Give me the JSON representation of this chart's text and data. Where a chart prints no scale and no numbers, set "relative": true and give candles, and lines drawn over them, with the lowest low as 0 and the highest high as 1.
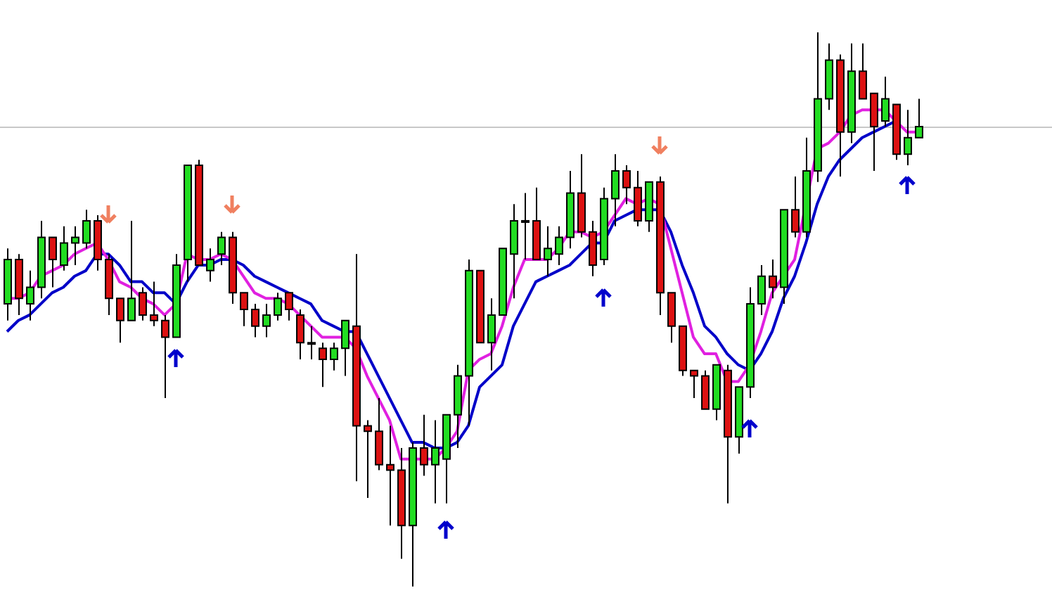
{
  "chart_data": {
    "type": "candlestick",
    "relative": true,
    "legend": false,
    "tick_labels": false,
    "categories": [
      null,
      null,
      null,
      null,
      null,
      null,
      null,
      null,
      null,
      null,
      null,
      null,
      null,
      null,
      null,
      null,
      null,
      null,
      null,
      null,
      null,
      null,
      null,
      null,
      null,
      null,
      null,
      null,
      null,
      null,
      null,
      null,
      null,
      null,
      null,
      null,
      null,
      null,
      null,
      null,
      null,
      null,
      null,
      null,
      null,
      null,
      null,
      null,
      null,
      null,
      null,
      null,
      null,
      null,
      null,
      null,
      null,
      null,
      null,
      null,
      null,
      null,
      null,
      null,
      null,
      null,
      null,
      null,
      null,
      null,
      null,
      null,
      null,
      null,
      null,
      null,
      null,
      null,
      null,
      null,
      null,
      null
    ],
    "ohlc": [
      [
        0.51,
        0.61,
        0.48,
        0.59
      ],
      [
        0.59,
        0.6,
        0.49,
        0.52
      ],
      [
        0.51,
        0.57,
        0.48,
        0.54
      ],
      [
        0.54,
        0.66,
        0.52,
        0.63
      ],
      [
        0.63,
        0.63,
        0.54,
        0.59
      ],
      [
        0.58,
        0.65,
        0.57,
        0.62
      ],
      [
        0.62,
        0.65,
        0.58,
        0.63
      ],
      [
        0.62,
        0.68,
        0.61,
        0.66
      ],
      [
        0.66,
        0.67,
        0.57,
        0.59
      ],
      [
        0.59,
        0.6,
        0.49,
        0.52
      ],
      [
        0.52,
        0.52,
        0.44,
        0.48
      ],
      [
        0.48,
        0.66,
        0.48,
        0.52
      ],
      [
        0.53,
        0.54,
        0.48,
        0.49
      ],
      [
        0.49,
        0.55,
        0.47,
        0.48
      ],
      [
        0.48,
        0.49,
        0.34,
        0.45
      ],
      [
        0.45,
        0.6,
        0.45,
        0.58
      ],
      [
        0.59,
        0.76,
        0.55,
        0.76
      ],
      [
        0.76,
        0.77,
        0.58,
        0.58
      ],
      [
        0.57,
        0.61,
        0.55,
        0.59
      ],
      [
        0.6,
        0.64,
        0.58,
        0.63
      ],
      [
        0.63,
        0.64,
        0.51,
        0.53
      ],
      [
        0.53,
        0.53,
        0.47,
        0.5
      ],
      [
        0.5,
        0.51,
        0.45,
        0.47
      ],
      [
        0.47,
        0.51,
        0.45,
        0.49
      ],
      [
        0.49,
        0.53,
        0.48,
        0.52
      ],
      [
        0.53,
        0.53,
        0.48,
        0.5
      ],
      [
        0.49,
        0.5,
        0.41,
        0.44
      ],
      [
        0.44,
        0.47,
        0.41,
        0.44
      ],
      [
        0.43,
        0.44,
        0.36,
        0.41
      ],
      [
        0.41,
        0.44,
        0.39,
        0.43
      ],
      [
        0.43,
        0.48,
        0.38,
        0.48
      ],
      [
        0.47,
        0.6,
        0.19,
        0.29
      ],
      [
        0.29,
        0.3,
        0.16,
        0.28
      ],
      [
        0.28,
        0.34,
        0.21,
        0.22
      ],
      [
        0.22,
        0.29,
        0.11,
        0.21
      ],
      [
        0.21,
        0.25,
        0.05,
        0.11
      ],
      [
        0.11,
        0.26,
        0,
        0.25
      ],
      [
        0.25,
        0.31,
        0.2,
        0.22
      ],
      [
        0.22,
        0.3,
        0.15,
        0.25
      ],
      [
        0.23,
        0.31,
        0.15,
        0.31
      ],
      [
        0.31,
        0.4,
        0.25,
        0.38
      ],
      [
        0.38,
        0.59,
        0.29,
        0.57
      ],
      [
        0.57,
        0.57,
        0.44,
        0.44
      ],
      [
        0.44,
        0.52,
        0.39,
        0.49
      ],
      [
        0.49,
        0.61,
        0.49,
        0.61
      ],
      [
        0.6,
        0.69,
        0.52,
        0.66
      ],
      [
        0.66,
        0.71,
        0.59,
        0.66
      ],
      [
        0.66,
        0.72,
        0.59,
        0.59
      ],
      [
        0.59,
        0.65,
        0.56,
        0.61
      ],
      [
        0.6,
        0.65,
        0.58,
        0.63
      ],
      [
        0.63,
        0.75,
        0.61,
        0.71
      ],
      [
        0.71,
        0.78,
        0.63,
        0.64
      ],
      [
        0.64,
        0.66,
        0.56,
        0.58
      ],
      [
        0.59,
        0.72,
        0.58,
        0.7
      ],
      [
        0.7,
        0.78,
        0.65,
        0.75
      ],
      [
        0.75,
        0.76,
        0.69,
        0.72
      ],
      [
        0.72,
        0.75,
        0.65,
        0.66
      ],
      [
        0.66,
        0.73,
        0.64,
        0.73
      ],
      [
        0.73,
        0.74,
        0.49,
        0.53
      ],
      [
        0.53,
        0.53,
        0.44,
        0.47
      ],
      [
        0.47,
        0.47,
        0.38,
        0.39
      ],
      [
        0.39,
        0.39,
        0.34,
        0.38
      ],
      [
        0.38,
        0.39,
        0.32,
        0.32
      ],
      [
        0.32,
        0.4,
        0.3,
        0.4
      ],
      [
        0.39,
        0.4,
        0.15,
        0.27
      ],
      [
        0.27,
        0.36,
        0.24,
        0.36
      ],
      [
        0.36,
        0.54,
        0.34,
        0.51
      ],
      [
        0.51,
        0.58,
        0.49,
        0.56
      ],
      [
        0.56,
        0.59,
        0.52,
        0.54
      ],
      [
        0.54,
        0.68,
        0.51,
        0.68
      ],
      [
        0.68,
        0.74,
        0.63,
        0.64
      ],
      [
        0.64,
        0.81,
        0.63,
        0.75
      ],
      [
        0.75,
        1,
        0.73,
        0.88
      ],
      [
        0.88,
        0.98,
        0.86,
        0.95
      ],
      [
        0.95,
        0.96,
        0.74,
        0.82
      ],
      [
        0.82,
        0.98,
        0.8,
        0.93
      ],
      [
        0.93,
        0.98,
        0.88,
        0.88
      ],
      [
        0.89,
        0.89,
        0.75,
        0.83
      ],
      [
        0.84,
        0.92,
        0.83,
        0.88
      ],
      [
        0.87,
        0.87,
        0.77,
        0.78
      ],
      [
        0.78,
        0.86,
        0.76,
        0.81
      ],
      [
        0.81,
        0.88,
        0.81,
        0.83
      ]
    ],
    "series": [
      {
        "type": "line",
        "color": "#e020e0",
        "values": [
          0.52,
          0.52,
          0.53,
          0.56,
          0.57,
          0.58,
          0.6,
          0.61,
          0.62,
          0.59,
          0.55,
          0.54,
          0.52,
          0.51,
          0.49,
          0.51,
          0.6,
          0.59,
          0.59,
          0.6,
          0.59,
          0.56,
          0.53,
          0.52,
          0.52,
          0.51,
          0.49,
          0.47,
          0.45,
          0.45,
          0.45,
          0.43,
          0.38,
          0.34,
          0.3,
          0.23,
          0.23,
          0.23,
          0.23,
          0.25,
          0.28,
          0.39,
          0.41,
          0.42,
          0.47,
          0.54,
          0.59,
          0.59,
          0.59,
          0.61,
          0.64,
          0.64,
          0.63,
          0.64,
          0.67,
          0.7,
          0.69,
          0.7,
          0.69,
          0.61,
          0.53,
          0.45,
          0.42,
          0.42,
          0.37,
          0.37,
          0.4,
          0.46,
          0.53,
          0.56,
          0.59,
          null,
          0.79,
          0.8,
          0.82,
          0.85,
          0.86,
          0.86,
          0.86,
          0.84,
          0.82,
          0.82
        ]
      },
      {
        "type": "line",
        "color": "#0000c8",
        "values": [
          0.46,
          0.48,
          0.49,
          0.51,
          0.53,
          0.54,
          0.56,
          0.57,
          0.6,
          0.6,
          0.58,
          0.55,
          0.55,
          0.53,
          0.53,
          0.51,
          0.55,
          0.58,
          0.58,
          0.59,
          0.59,
          0.58,
          0.56,
          0.55,
          0.54,
          0.53,
          0.52,
          0.51,
          0.48,
          0.47,
          0.46,
          0.46,
          0.42,
          0.38,
          0.34,
          0.3,
          0.26,
          0.26,
          0.25,
          0.25,
          0.26,
          0.29,
          0.36,
          0.38,
          0.4,
          0.47,
          0.51,
          0.55,
          0.56,
          0.57,
          0.58,
          0.6,
          0.62,
          0.62,
          0.66,
          0.67,
          0.68,
          0.68,
          0.68,
          0.64,
          0.58,
          0.53,
          0.47,
          0.45,
          0.42,
          0.4,
          0.39,
          0.42,
          0.46,
          0.52,
          0.56,
          0.62,
          0.69,
          0.74,
          0.77,
          0.79,
          0.81,
          0.82,
          0.83,
          0.84,
          null,
          null
        ]
      }
    ],
    "ref_lines": [
      {
        "axis": "y",
        "value": 0.83,
        "color": "#c8c8c8"
      }
    ]
  }
}
